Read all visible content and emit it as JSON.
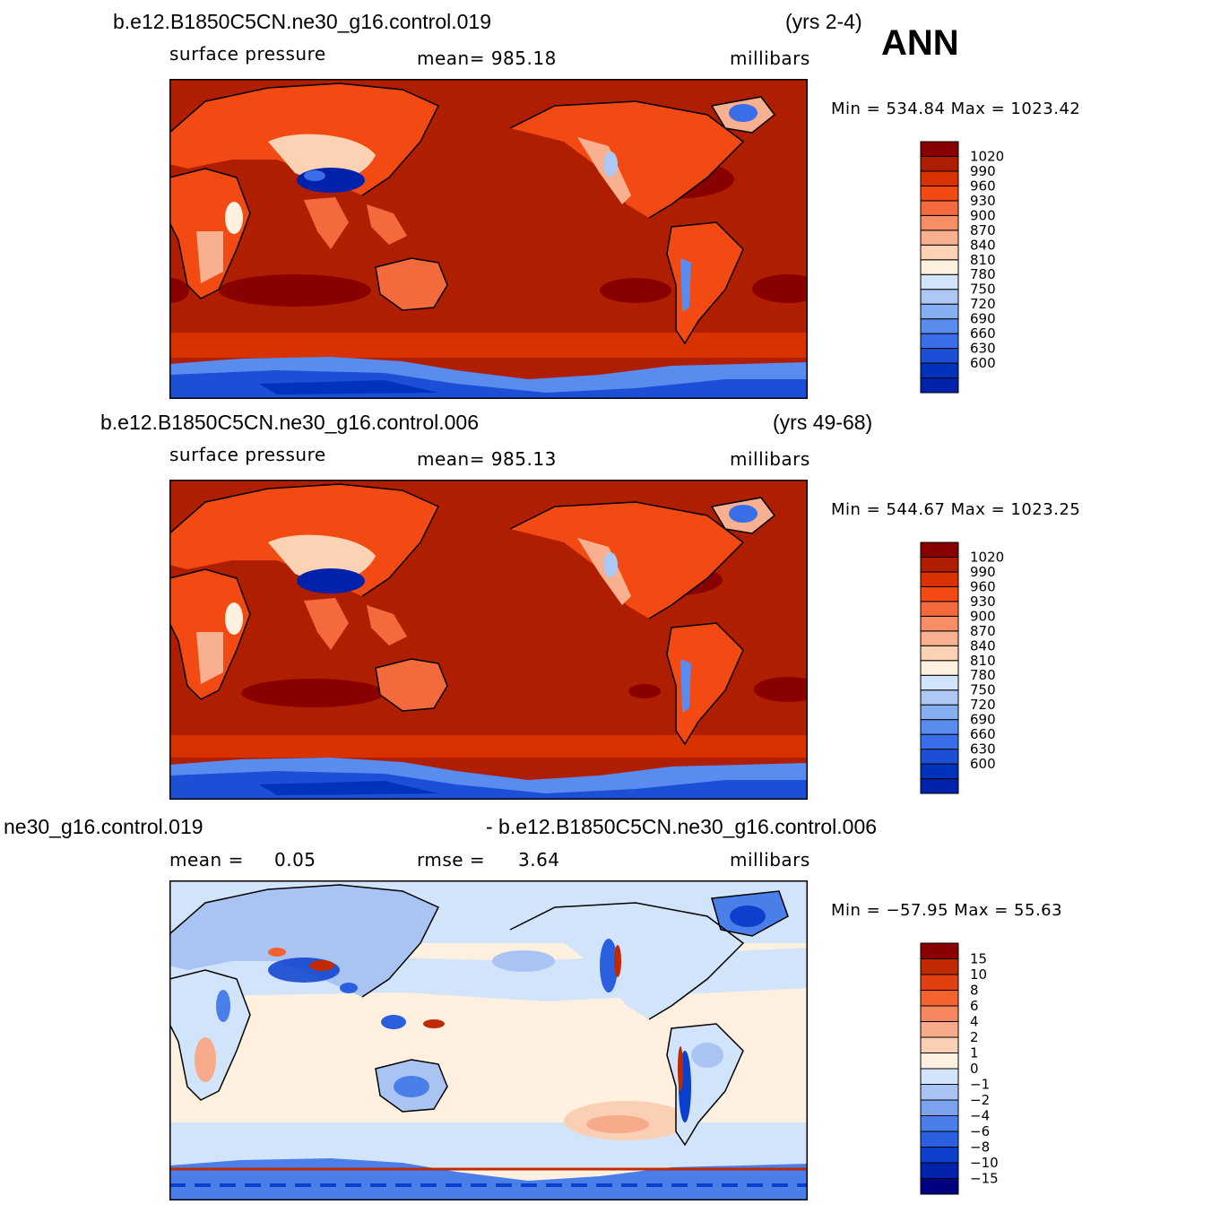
{
  "season": "ANN",
  "colors": {
    "abs_scale": [
      "#000080",
      "#0022aa",
      "#0033bb",
      "#1a4fd6",
      "#3a6ee8",
      "#5a8cf0",
      "#86aef2",
      "#aec8f4",
      "#d2e4fa",
      "#fff0e0",
      "#fcd2b4",
      "#f8b090",
      "#f78e66",
      "#f56a3c",
      "#f24a12",
      "#d83200",
      "#b01e00",
      "#880000"
    ],
    "diff_scale": [
      "#000080",
      "#0022aa",
      "#0b3fcc",
      "#2a5fe0",
      "#4a7ee8",
      "#7aa2ef",
      "#a9c4f3",
      "#d2e4fa",
      "#fff0e0",
      "#fbcfb3",
      "#f7ab8b",
      "#f68760",
      "#f4622f",
      "#e24010",
      "#c02a00",
      "#880000"
    ],
    "coast": "#000000"
  },
  "panels": [
    {
      "case": "b.e12.B1850C5CN.ne30_g16.control.019",
      "years": "(yrs 2-4)",
      "variable": "surface pressure",
      "stat": "mean=  985.18",
      "units": "millibars",
      "minmax": "Min  =  534.84  Max  =  1023.42",
      "type": "abs"
    },
    {
      "case": "b.e12.B1850C5CN.ne30_g16.control.006",
      "years": "(yrs 49-68)",
      "variable": "surface pressure",
      "stat": "mean=  985.13",
      "units": "millibars",
      "minmax": "Min  =  544.67  Max  =  1023.25",
      "type": "abs"
    },
    {
      "case_left": "ne30_g16.control.019",
      "case_right": "- b.e12.B1850C5CN.ne30_g16.control.006",
      "stat_mean_label": "mean  =",
      "stat_mean_value": "0.05",
      "stat_rmse_label": "rmse  =",
      "stat_rmse_value": "3.64",
      "units": "millibars",
      "minmax": "Min  =  −57.95  Max  =    55.63",
      "type": "diff"
    }
  ],
  "chart_data": {
    "type": "heatmap",
    "abs_colorbar_levels": [
      "1020",
      "990",
      "960",
      "930",
      "900",
      "870",
      "840",
      "810",
      "780",
      "750",
      "720",
      "690",
      "660",
      "630",
      "600"
    ],
    "diff_colorbar_levels": [
      "15",
      "10",
      "8",
      "6",
      "4",
      "2",
      "1",
      "0",
      "−1",
      "−2",
      "−4",
      "−6",
      "−8",
      "−10",
      "−15"
    ]
  }
}
